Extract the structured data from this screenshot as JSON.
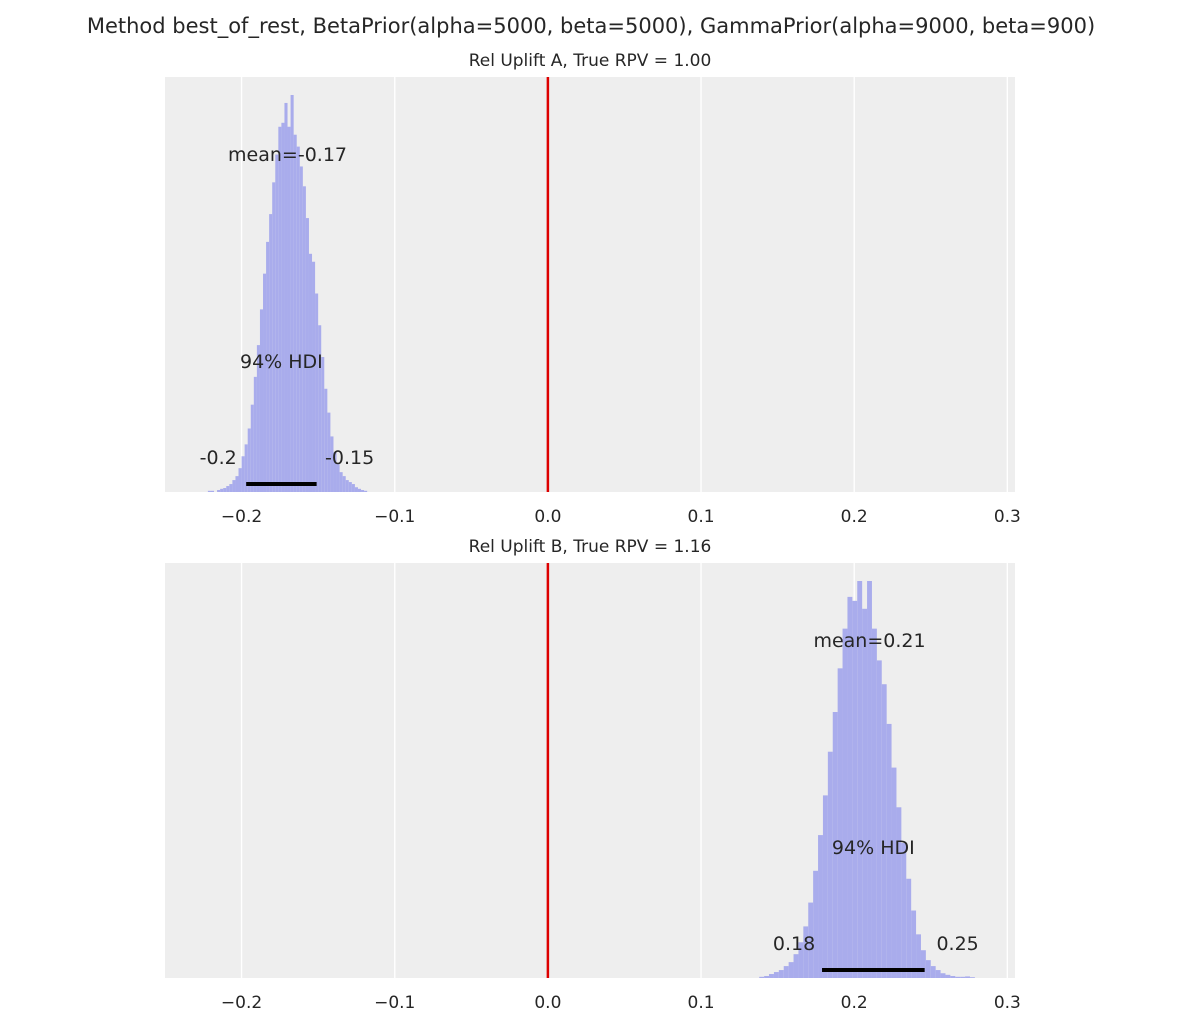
{
  "figure": {
    "title": "Method best_of_rest, BetaPrior(alpha=5000, beta=5000), GammaPrior(alpha=9000, beta=900)"
  },
  "colors": {
    "background": "#EEEEEE",
    "grid": "#FFFFFF",
    "histogram": "#A9ACEC",
    "reference_line": "#DD0000",
    "hdi_bar": "#000000",
    "text": "#262626"
  },
  "chart_data": [
    {
      "type": "histogram",
      "title": "Rel Uplift A, True RPV = 1.00",
      "xlim": [
        -0.25,
        0.305
      ],
      "xticks": [
        -0.2,
        -0.1,
        0.0,
        0.1,
        0.2,
        0.3
      ],
      "xtick_labels": [
        "−0.2",
        "−0.1",
        "0.0",
        "0.1",
        "0.2",
        "0.3"
      ],
      "grid": true,
      "reference_line_x": 0.0,
      "bins": {
        "start": -0.222,
        "width": 0.002,
        "heights": [
          0.003,
          0.003,
          0.0,
          0.005,
          0.008,
          0.01,
          0.015,
          0.02,
          0.03,
          0.04,
          0.06,
          0.09,
          0.12,
          0.16,
          0.22,
          0.29,
          0.37,
          0.46,
          0.55,
          0.63,
          0.7,
          0.78,
          0.85,
          0.92,
          0.93,
          0.98,
          0.92,
          1.0,
          0.9,
          0.87,
          0.82,
          0.77,
          0.69,
          0.6,
          0.58,
          0.5,
          0.42,
          0.34,
          0.26,
          0.2,
          0.14,
          0.1,
          0.07,
          0.05,
          0.04,
          0.03,
          0.025,
          0.02,
          0.012,
          0.008,
          0.005,
          0.003
        ]
      },
      "mean": -0.17,
      "mean_label": "mean=-0.17",
      "hdi_label": "94% HDI",
      "hdi": [
        -0.197,
        -0.151
      ],
      "hdi_low_label": "-0.2",
      "hdi_high_label": "-0.15"
    },
    {
      "type": "histogram",
      "title": "Rel Uplift B, True RPV = 1.16",
      "xlim": [
        -0.25,
        0.305
      ],
      "xticks": [
        -0.2,
        -0.1,
        0.0,
        0.1,
        0.2,
        0.3
      ],
      "xtick_labels": [
        "−0.2",
        "−0.1",
        "0.0",
        "0.1",
        "0.2",
        "0.3"
      ],
      "grid": true,
      "reference_line_x": 0.0,
      "bins": {
        "start": 0.138,
        "width": 0.0032,
        "heights": [
          0.003,
          0.005,
          0.01,
          0.015,
          0.02,
          0.03,
          0.04,
          0.06,
          0.09,
          0.13,
          0.19,
          0.27,
          0.36,
          0.46,
          0.57,
          0.67,
          0.78,
          0.88,
          0.96,
          0.95,
          1.0,
          0.93,
          1.0,
          0.88,
          0.8,
          0.74,
          0.64,
          0.53,
          0.43,
          0.34,
          0.25,
          0.17,
          0.11,
          0.07,
          0.045,
          0.03,
          0.02,
          0.012,
          0.008,
          0.005,
          0.003,
          0.003,
          0.004,
          0.002
        ]
      },
      "mean": 0.21,
      "mean_label": "mean=0.21",
      "hdi_label": "94% HDI",
      "hdi": [
        0.179,
        0.246
      ],
      "hdi_low_label": "0.18",
      "hdi_high_label": "0.25"
    }
  ]
}
